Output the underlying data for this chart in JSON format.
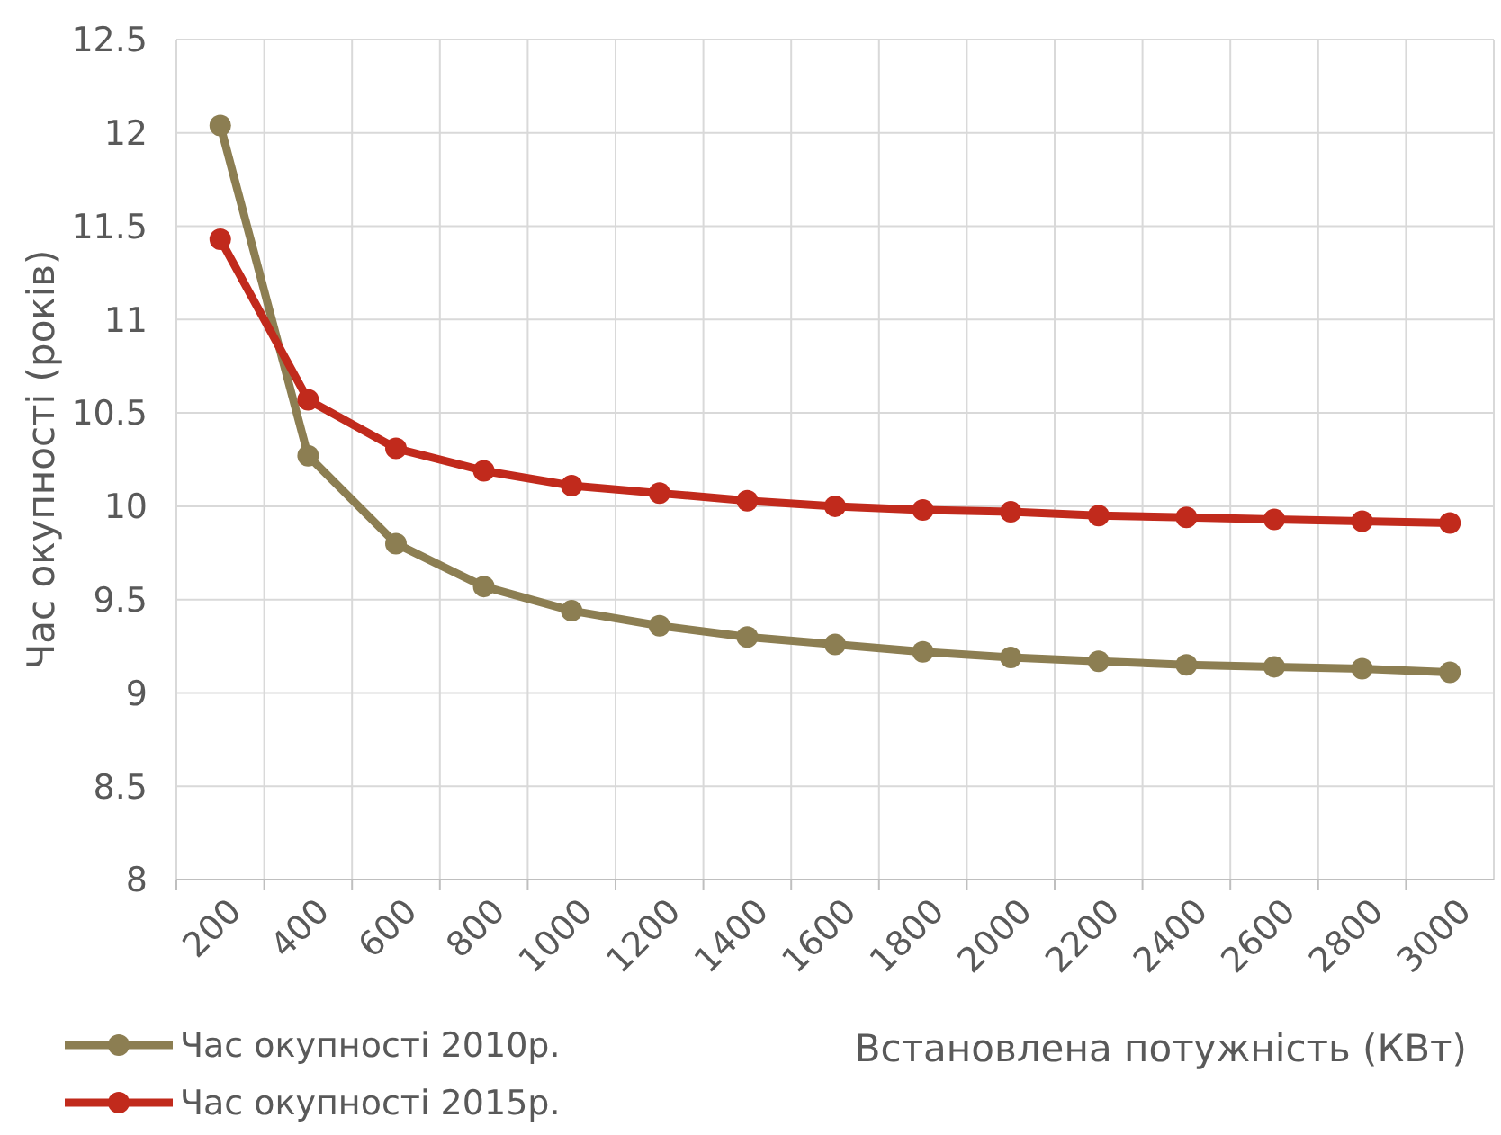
{
  "chart_data": {
    "type": "line",
    "xlabel": "Встановлена потужність (КВт)",
    "ylabel": "Час окупності (років)",
    "categories": [
      "200",
      "400",
      "600",
      "800",
      "1000",
      "1200",
      "1400",
      "1600",
      "1800",
      "2000",
      "2200",
      "2400",
      "2600",
      "2800",
      "3000"
    ],
    "series": [
      {
        "name": "Час окупності 2010р.",
        "color": "#8c7e52",
        "values": [
          12.04,
          10.27,
          9.8,
          9.57,
          9.44,
          9.36,
          9.3,
          9.26,
          9.22,
          9.19,
          9.17,
          9.15,
          9.14,
          9.13,
          9.11
        ]
      },
      {
        "name": "Час окупності 2015р.",
        "color": "#c12a1c",
        "values": [
          11.43,
          10.57,
          10.31,
          10.19,
          10.11,
          10.07,
          10.03,
          10.0,
          9.98,
          9.97,
          9.95,
          9.94,
          9.93,
          9.92,
          9.91
        ]
      }
    ],
    "ylim": [
      8,
      12.5
    ],
    "yticks": [
      8,
      8.5,
      9,
      9.5,
      10,
      10.5,
      11,
      11.5,
      12,
      12.5
    ],
    "grid": true,
    "legend": "bottom left",
    "marker": "circle",
    "line_style": "solid"
  }
}
